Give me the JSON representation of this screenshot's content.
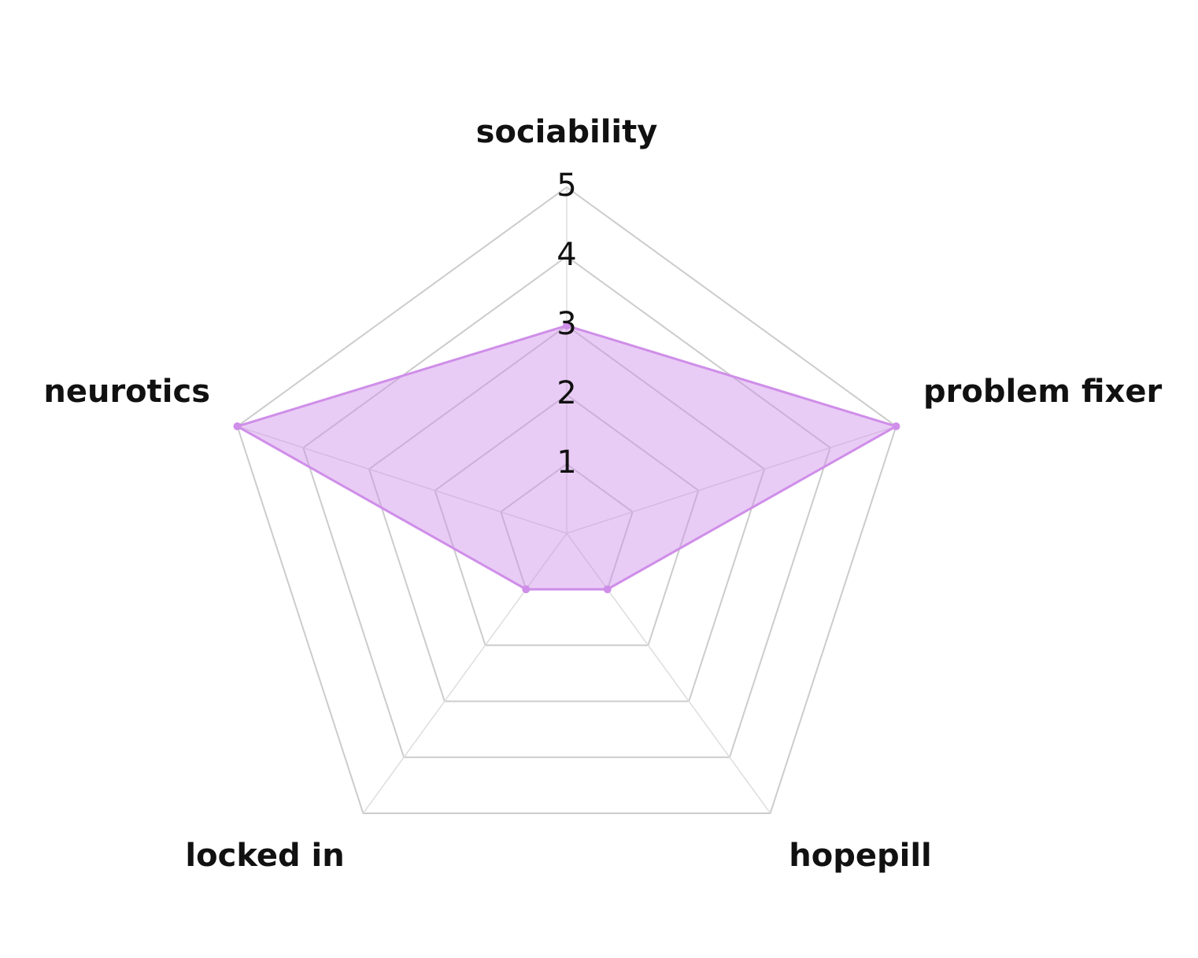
{
  "chart_data": {
    "type": "radar",
    "categories": [
      "sociability",
      "problem fixer",
      "hopepill",
      "locked in",
      "neurotics"
    ],
    "series": [
      {
        "color": "#cf8ee9",
        "values": [
          3,
          5,
          1,
          1,
          5
        ]
      }
    ],
    "rlim": [
      0,
      5
    ],
    "rticks": [
      1,
      2,
      3,
      4,
      5
    ],
    "grid": true
  }
}
